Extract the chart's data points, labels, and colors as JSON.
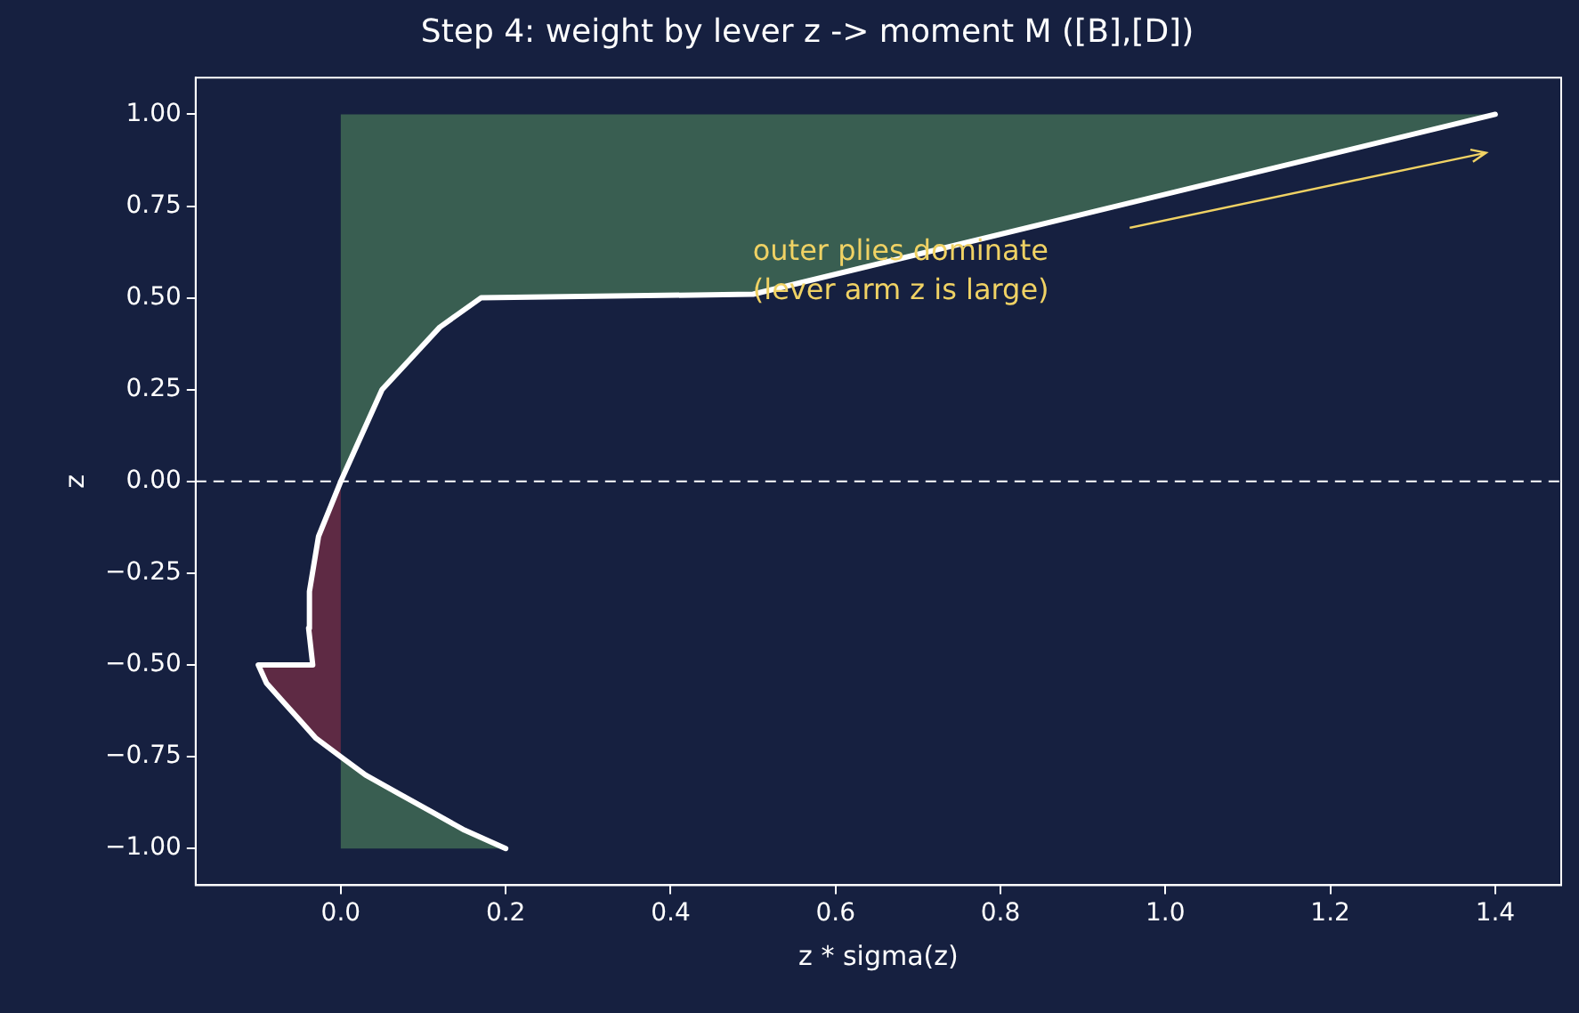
{
  "chart_data": {
    "type": "line",
    "title": "Step 4: weight by lever z -> moment M ([B],[D])",
    "xlabel": "z * sigma(z)",
    "ylabel": "z",
    "xlim": [
      -0.176,
      1.48
    ],
    "ylim": [
      -1.1,
      1.1
    ],
    "xticks": [
      {
        "value": 0,
        "label": "0.0"
      },
      {
        "value": 0.2,
        "label": "0.2"
      },
      {
        "value": 0.4,
        "label": "0.4"
      },
      {
        "value": 0.6,
        "label": "0.6"
      },
      {
        "value": 0.8,
        "label": "0.8"
      },
      {
        "value": 1,
        "label": "1.0"
      },
      {
        "value": 1.2,
        "label": "1.2"
      },
      {
        "value": 1.4,
        "label": "1.4"
      }
    ],
    "yticks": [
      {
        "value": -1,
        "label": "−1.00"
      },
      {
        "value": -0.75,
        "label": "−0.75"
      },
      {
        "value": -0.5,
        "label": "−0.50"
      },
      {
        "value": -0.25,
        "label": "−0.25"
      },
      {
        "value": 0,
        "label": "0.00"
      },
      {
        "value": 0.25,
        "label": "0.25"
      },
      {
        "value": 0.5,
        "label": "0.50"
      },
      {
        "value": 0.75,
        "label": "0.75"
      },
      {
        "value": 1,
        "label": "1.00"
      }
    ],
    "grid": false,
    "legend": false,
    "marker": "none",
    "line_style": "solid",
    "series": [
      {
        "type": "area",
        "color": "#3f6a55",
        "x": [
          0,
          0.2,
          0.15,
          0.11,
          0.07,
          0.03,
          0,
          null,
          0,
          0.02,
          0.05,
          0.12,
          0.17,
          0.5,
          1.4,
          0
        ],
        "values": [
          -1,
          -1,
          -0.95,
          -0.9,
          -0.85,
          -0.8,
          -0.75,
          null,
          0,
          0.1,
          0.25,
          0.42,
          0.5,
          0.51,
          1,
          1
        ]
      },
      {
        "type": "area",
        "color": "#6b2d45",
        "x": [
          0,
          -0.03,
          -0.05,
          -0.07,
          -0.09,
          -0.1,
          -0.034,
          -0.039,
          -0.038,
          -0.027,
          0
        ],
        "values": [
          -0.75,
          -0.7,
          -0.65,
          -0.6,
          -0.55,
          -0.5,
          -0.5,
          -0.4,
          -0.3,
          -0.15,
          0
        ]
      },
      {
        "type": "line",
        "color": "#ffffff",
        "x": [
          0.2,
          0.15,
          0.11,
          0.07,
          0.03,
          0,
          -0.03,
          -0.05,
          -0.07,
          -0.09,
          -0.1,
          -0.034,
          -0.039,
          -0.038,
          -0.027,
          0,
          0.02,
          0.05,
          0.12,
          0.17,
          0.5,
          1.4
        ],
        "values": [
          -1,
          -0.95,
          -0.9,
          -0.85,
          -0.8,
          -0.75,
          -0.7,
          -0.65,
          -0.6,
          -0.55,
          -0.5,
          -0.5,
          -0.4,
          -0.3,
          -0.15,
          0,
          0.1,
          0.25,
          0.42,
          0.5,
          0.51,
          1
        ]
      }
    ],
    "ref_lines": [
      {
        "axis": "y",
        "value": 0,
        "color": "#ffffff",
        "line_style": "dashed"
      }
    ],
    "annotations": [
      "outer plies dominate\n(lever arm z is large)"
    ]
  }
}
